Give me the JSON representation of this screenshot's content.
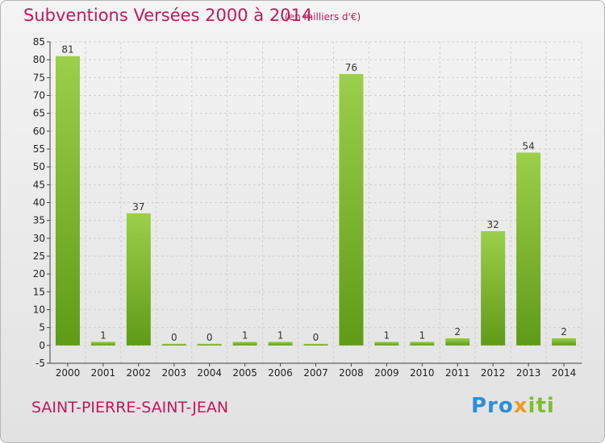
{
  "header": {
    "title": "Subventions Versées 2000 à 2014",
    "units": "(en milliers d'€)"
  },
  "footer": {
    "commune": "SAINT-PIERRE-SAINT-JEAN",
    "logo_parts": [
      "Pro",
      "x",
      "iti"
    ]
  },
  "colors": {
    "bar_light": "#9ccf4a",
    "bar_dark": "#5f9b17",
    "title": "#c2185b",
    "grid": "#d0d0d0"
  },
  "chart_data": {
    "type": "bar",
    "categories": [
      "2000",
      "2001",
      "2002",
      "2003",
      "2004",
      "2005",
      "2006",
      "2007",
      "2008",
      "2009",
      "2010",
      "2011",
      "2012",
      "2013",
      "2014"
    ],
    "values": [
      81,
      1,
      37,
      0,
      0,
      1,
      1,
      0,
      76,
      1,
      1,
      2,
      32,
      54,
      2
    ],
    "title": "Subventions Versées 2000 à 2014",
    "subtitle": "(en milliers d'€)",
    "xlabel": "",
    "ylabel": "",
    "ylim": [
      -5,
      85
    ],
    "yticks": [
      -5,
      0,
      5,
      10,
      15,
      20,
      25,
      30,
      35,
      40,
      45,
      50,
      55,
      60,
      65,
      70,
      75,
      80,
      85
    ],
    "grid": true,
    "legend": "none"
  }
}
